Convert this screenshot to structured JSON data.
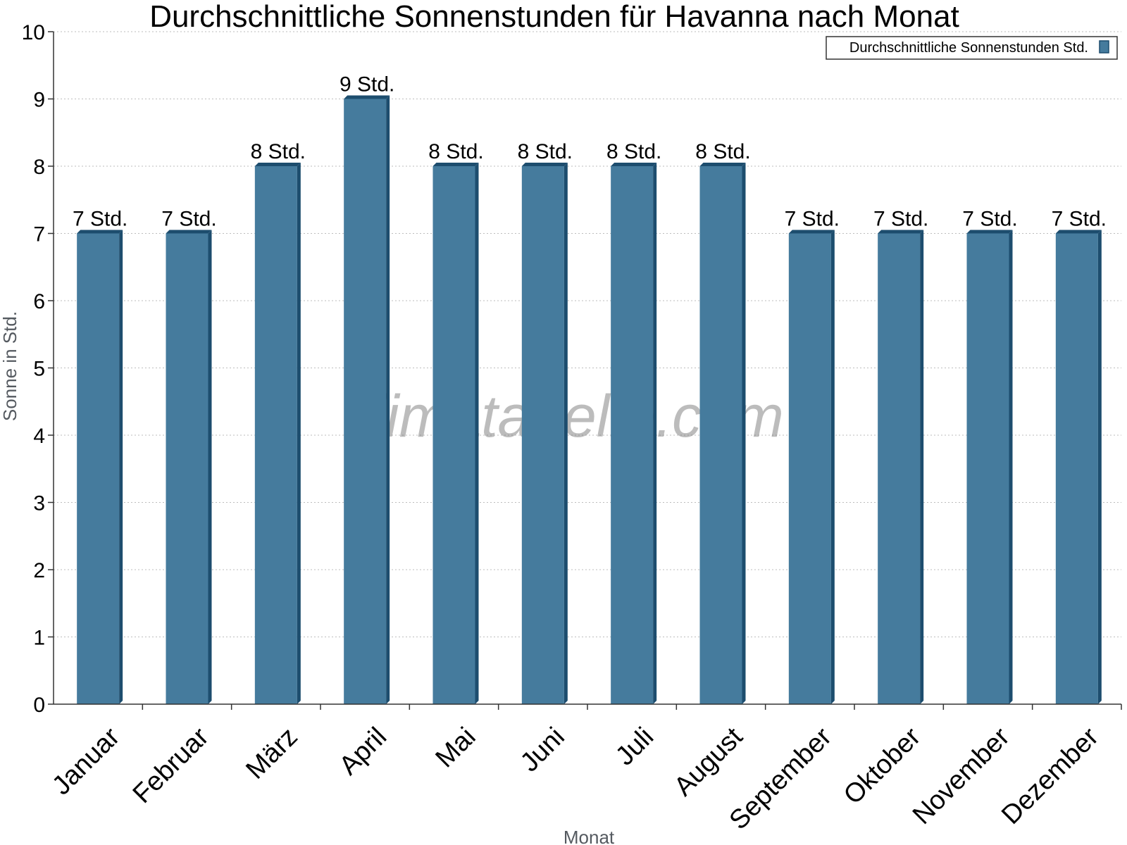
{
  "chart_data": {
    "type": "bar",
    "title": "Durchschnittliche Sonnenstunden für Havanna nach Monat",
    "xlabel": "Monat",
    "ylabel": "Sonne in Std.",
    "ylim": [
      0,
      10
    ],
    "yticks": [
      "0",
      "1",
      "2",
      "3",
      "4",
      "5",
      "6",
      "7",
      "8",
      "9",
      "10"
    ],
    "categories": [
      "Januar",
      "Februar",
      "März",
      "April",
      "Mai",
      "Juni",
      "Juli",
      "August",
      "September",
      "Oktober",
      "November",
      "Dezember"
    ],
    "series": [
      {
        "name": "Durchschnittliche Sonnenstunden Std.",
        "values": [
          7,
          7,
          8,
          9,
          8,
          8,
          8,
          8,
          7,
          7,
          7,
          7
        ],
        "labels": [
          "7 Std.",
          "7 Std.",
          "8 Std.",
          "9 Std.",
          "8 Std.",
          "8 Std.",
          "8 Std.",
          "8 Std.",
          "7 Std.",
          "7 Std.",
          "7 Std.",
          "7 Std."
        ],
        "color": "#457b9d",
        "edge_color": "#1d4d6e"
      }
    ],
    "grid": true,
    "legend": "top-right",
    "watermark": "klimatabelle.com"
  }
}
